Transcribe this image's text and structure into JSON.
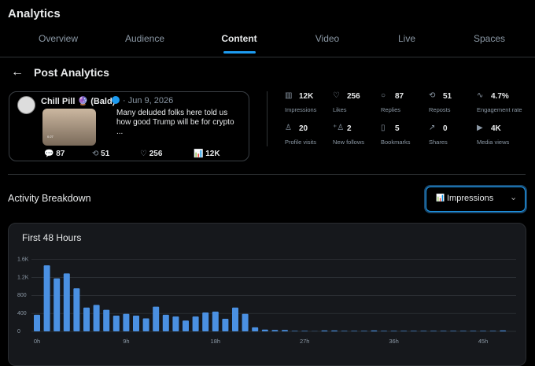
{
  "header": {
    "title": "Analytics"
  },
  "tabs": [
    "Overview",
    "Audience",
    "Content",
    "Video",
    "Live",
    "Spaces"
  ],
  "page_title": "Post Analytics",
  "post": {
    "author": "Chill Pill 🔮 (Bald)",
    "date": "· Jun 9, 2026",
    "text": "Many deluded folks here told us how good Trump will be for crypto ...",
    "video_time": "0:27",
    "replies": "87",
    "reposts": "51",
    "likes": "256",
    "views": "12K"
  },
  "metrics": [
    {
      "value": "12K",
      "label": "Impressions"
    },
    {
      "value": "256",
      "label": "Likes"
    },
    {
      "value": "87",
      "label": "Replies"
    },
    {
      "value": "51",
      "label": "Reposts"
    },
    {
      "value": "4.7%",
      "label": "Engagement rate"
    },
    {
      "value": "20",
      "label": "Profile visits"
    },
    {
      "value": "2",
      "label": "New follows"
    },
    {
      "value": "5",
      "label": "Bookmarks"
    },
    {
      "value": "0",
      "label": "Shares"
    },
    {
      "value": "4K",
      "label": "Media views"
    }
  ],
  "section_title": "Activity Breakdown",
  "dropdown": "Impressions",
  "chart_data": {
    "type": "bar",
    "title": "First 48 Hours",
    "color": "#4a90e2",
    "grid": true,
    "categories": [
      "0h",
      null,
      null,
      null,
      null,
      null,
      null,
      null,
      null,
      "9h",
      null,
      null,
      null,
      null,
      null,
      null,
      null,
      null,
      "18h",
      null,
      null,
      null,
      null,
      null,
      null,
      null,
      null,
      "27h",
      null,
      null,
      null,
      null,
      null,
      null,
      null,
      null,
      "36h",
      null,
      null,
      null,
      null,
      null,
      null,
      null,
      null,
      "45h",
      null,
      null
    ],
    "values": [
      370,
      1470,
      1180,
      1290,
      960,
      530,
      590,
      480,
      350,
      390,
      350,
      290,
      550,
      370,
      330,
      240,
      330,
      420,
      440,
      280,
      530,
      390,
      90,
      40,
      30,
      30,
      10,
      10,
      5,
      20,
      20,
      10,
      10,
      10,
      20,
      10,
      10,
      10,
      10,
      10,
      10,
      10,
      10,
      10,
      10,
      10,
      10,
      20
    ],
    "ylim": [
      0,
      1700
    ],
    "yticks": [
      0,
      400,
      800,
      {
        "value": 1200,
        "label": "1.2K"
      },
      {
        "value": 1600,
        "label": "1.6K"
      }
    ]
  }
}
